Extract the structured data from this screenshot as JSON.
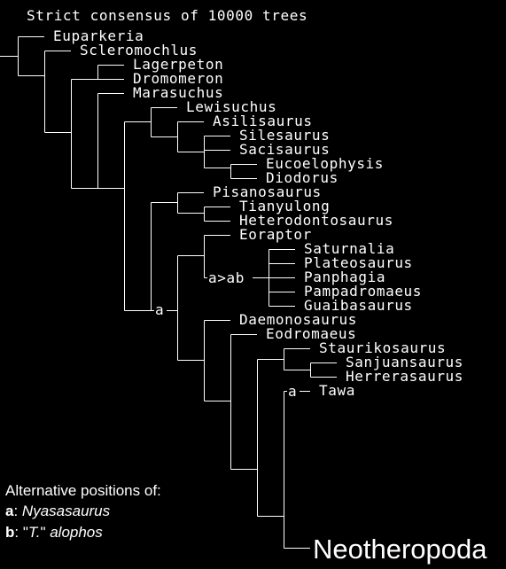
{
  "title": "Strict consensus of 10000 trees",
  "taxa": {
    "euparkeria": "Euparkeria",
    "scleromochlus": "Scleromochlus",
    "lagerpeton": "Lagerpeton",
    "dromomeron": "Dromomeron",
    "marasuchus": "Marasuchus",
    "lewisuchus": "Lewisuchus",
    "asilisaurus": "Asilisaurus",
    "silesaurus": "Silesaurus",
    "sacisaurus": "Sacisaurus",
    "eucoelophysis": "Eucoelophysis",
    "diodorus": "Diodorus",
    "pisanosaurus": "Pisanosaurus",
    "tianyulong": "Tianyulong",
    "heterodontosaurus": "Heterodontosaurus",
    "eoraptor": "Eoraptor",
    "saturnalia": "Saturnalia",
    "plateosaurus": "Plateosaurus",
    "panphagia": "Panphagia",
    "pampadromaeus": "Pampadromaeus",
    "guaibasaurus": "Guaibasaurus",
    "daemonosaurus": "Daemonosaurus",
    "eodromaeus": "Eodromaeus",
    "staurikosaurus": "Staurikosaurus",
    "sanjuansaurus": "Sanjuansaurus",
    "herrerasaurus": "Herrerasaurus",
    "tawa": "Tawa",
    "neotheropoda": "Neotheropoda"
  },
  "node_labels": {
    "a_main": "a",
    "a_to_ab": "a>ab",
    "a_tawa": "a"
  },
  "legend": {
    "heading": "Alternative positions of:",
    "items": [
      {
        "key": "a",
        "taxon": "Nyasasaurus"
      },
      {
        "key": "b",
        "taxon_quote_open": "\"",
        "taxon": "T.",
        "taxon_quote_close": "\"",
        "taxon_rest": " alophos"
      }
    ]
  }
}
